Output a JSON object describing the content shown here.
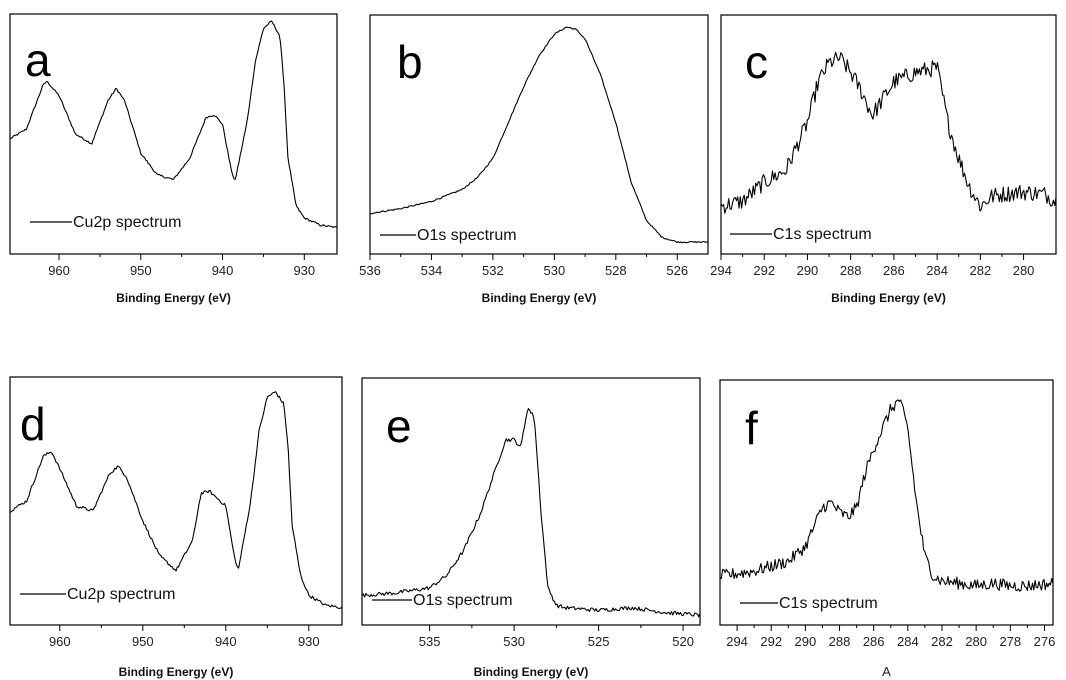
{
  "chart_data": [
    {
      "type": "line",
      "panel_label": "a",
      "legend": "Cu2p spectrum",
      "xlabel": "Binding Energy (eV)",
      "ylabel": "",
      "x_reversed": true,
      "xlim": [
        966,
        926
      ],
      "xticks": [
        960,
        950,
        940,
        930
      ],
      "ylim": [
        0,
        1
      ],
      "noise": 0.004,
      "series": [
        {
          "x": [
            966,
            964,
            962,
            961.5,
            960,
            958,
            956,
            954,
            953,
            952,
            950,
            948,
            946,
            944,
            942,
            941,
            940,
            939,
            938.5,
            937,
            936,
            935,
            934,
            933,
            932.5,
            932,
            931,
            930,
            928,
            926
          ],
          "y": [
            0.48,
            0.52,
            0.7,
            0.72,
            0.66,
            0.5,
            0.46,
            0.64,
            0.69,
            0.64,
            0.42,
            0.33,
            0.31,
            0.4,
            0.57,
            0.58,
            0.54,
            0.36,
            0.3,
            0.55,
            0.8,
            0.94,
            0.97,
            0.91,
            0.72,
            0.4,
            0.2,
            0.15,
            0.12,
            0.11
          ]
        }
      ]
    },
    {
      "type": "line",
      "panel_label": "b",
      "legend": "O1s spectrum",
      "xlabel": "Binding Energy (eV)",
      "ylabel": "",
      "x_reversed": true,
      "xlim": [
        536,
        525
      ],
      "xticks": [
        536,
        534,
        532,
        530,
        528,
        526
      ],
      "ylim": [
        0,
        1
      ],
      "noise": 0.003,
      "series": [
        {
          "x": [
            536,
            535,
            534,
            533,
            532.5,
            532,
            531.5,
            531,
            530.5,
            530,
            529.6,
            529.3,
            529,
            528.5,
            528,
            527.5,
            527,
            526.5,
            526,
            525.5,
            525
          ],
          "y": [
            0.17,
            0.19,
            0.22,
            0.27,
            0.32,
            0.4,
            0.55,
            0.7,
            0.83,
            0.92,
            0.95,
            0.94,
            0.9,
            0.75,
            0.55,
            0.3,
            0.14,
            0.07,
            0.05,
            0.05,
            0.05
          ]
        }
      ]
    },
    {
      "type": "line",
      "panel_label": "c",
      "legend": "C1s spectrum",
      "xlabel": "Binding Energy (eV)",
      "ylabel": "",
      "x_reversed": true,
      "xlim": [
        294,
        278.5
      ],
      "xticks": [
        294,
        292,
        290,
        288,
        286,
        284,
        282,
        280
      ],
      "ylim": [
        0,
        1
      ],
      "noise": 0.035,
      "series": [
        {
          "x": [
            294,
            293,
            292,
            291,
            290,
            289.5,
            289,
            288.5,
            288,
            287.5,
            287,
            286.5,
            286,
            285.5,
            285,
            284.5,
            284,
            283.5,
            283,
            282.5,
            282,
            281.5,
            281,
            280,
            279,
            278.5
          ],
          "y": [
            0.2,
            0.22,
            0.3,
            0.35,
            0.55,
            0.72,
            0.8,
            0.82,
            0.76,
            0.68,
            0.58,
            0.65,
            0.72,
            0.74,
            0.76,
            0.77,
            0.78,
            0.55,
            0.4,
            0.28,
            0.2,
            0.24,
            0.25,
            0.26,
            0.25,
            0.22
          ]
        }
      ]
    },
    {
      "type": "line",
      "panel_label": "d",
      "legend": "Cu2p spectrum",
      "xlabel": "Binding Energy (eV)",
      "ylabel": "",
      "x_reversed": true,
      "xlim": [
        966,
        926
      ],
      "xticks": [
        960,
        950,
        940,
        930
      ],
      "ylim": [
        0,
        1
      ],
      "noise": 0.006,
      "series": [
        {
          "x": [
            966,
            964,
            962,
            961,
            960,
            958,
            956,
            954,
            953,
            952,
            950,
            948,
            946,
            944,
            943,
            942,
            940,
            939,
            938.5,
            937,
            936,
            935,
            934,
            933,
            932.5,
            932,
            931,
            930,
            928,
            926
          ],
          "y": [
            0.46,
            0.5,
            0.68,
            0.7,
            0.63,
            0.48,
            0.46,
            0.61,
            0.64,
            0.6,
            0.42,
            0.28,
            0.22,
            0.34,
            0.53,
            0.54,
            0.48,
            0.28,
            0.22,
            0.5,
            0.78,
            0.92,
            0.94,
            0.89,
            0.72,
            0.4,
            0.2,
            0.12,
            0.08,
            0.07
          ]
        }
      ]
    },
    {
      "type": "line",
      "panel_label": "e",
      "legend": "O1s spectrum",
      "xlabel": "Binding Energy (eV)",
      "ylabel": "",
      "x_reversed": true,
      "xlim": [
        539,
        519
      ],
      "xticks": [
        535,
        530,
        525,
        520
      ],
      "ylim": [
        0,
        1
      ],
      "noise": 0.008,
      "series": [
        {
          "x": [
            539,
            537,
            535,
            534,
            533,
            532,
            531,
            530.5,
            530,
            529.6,
            529.2,
            528.8,
            528.4,
            528,
            527.5,
            527,
            525,
            523,
            521,
            519
          ],
          "y": [
            0.12,
            0.13,
            0.15,
            0.2,
            0.3,
            0.45,
            0.65,
            0.75,
            0.75,
            0.72,
            0.88,
            0.84,
            0.45,
            0.15,
            0.08,
            0.07,
            0.06,
            0.07,
            0.05,
            0.04
          ]
        }
      ]
    },
    {
      "type": "line",
      "panel_label": "f",
      "legend": "C1s spectrum",
      "xlabel": "A",
      "ylabel": "",
      "x_reversed": true,
      "xlim": [
        295,
        275.5
      ],
      "xticks": [
        294,
        292,
        290,
        288,
        286,
        284,
        282,
        280,
        278,
        276
      ],
      "ylim": [
        0,
        1
      ],
      "noise": 0.025,
      "series": [
        {
          "x": [
            295,
            293,
            291,
            290,
            289.5,
            289,
            288.5,
            288,
            287.5,
            287,
            286.5,
            286,
            285.5,
            285,
            284.5,
            284,
            283.5,
            283,
            282.5,
            282,
            281,
            280,
            279,
            278,
            277,
            275.5
          ],
          "y": [
            0.2,
            0.22,
            0.26,
            0.32,
            0.4,
            0.48,
            0.5,
            0.46,
            0.44,
            0.48,
            0.62,
            0.72,
            0.8,
            0.88,
            0.92,
            0.8,
            0.5,
            0.28,
            0.2,
            0.18,
            0.17,
            0.16,
            0.17,
            0.16,
            0.16,
            0.17
          ]
        }
      ]
    }
  ]
}
